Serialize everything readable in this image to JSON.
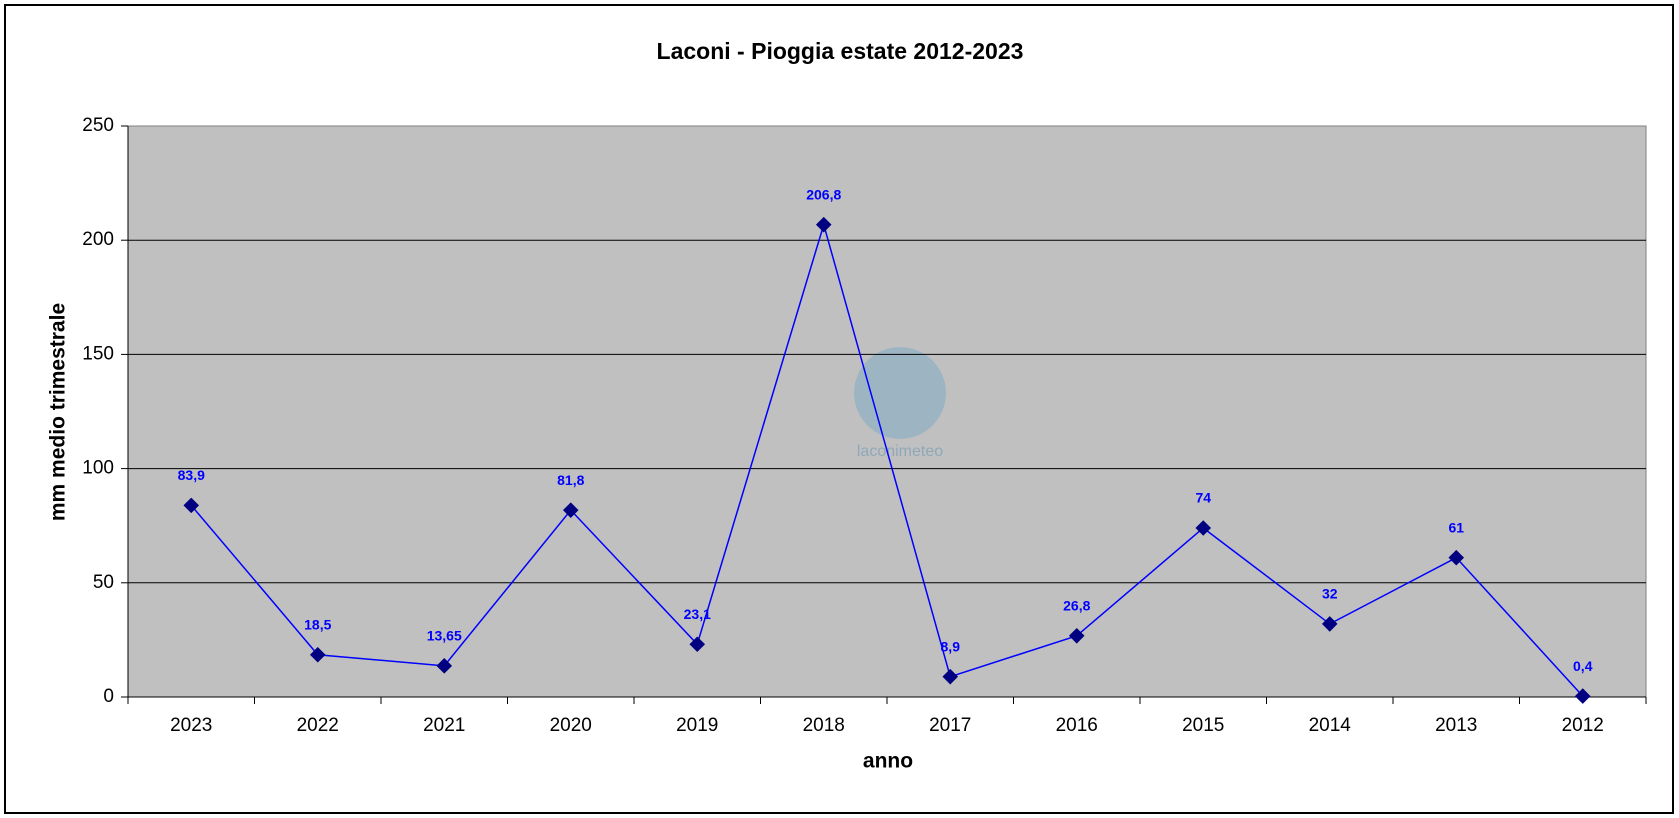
{
  "chart_data": {
    "type": "line",
    "title": "Laconi - Pioggia estate 2012-2023",
    "x_label": "anno",
    "y_label": "mm medio trimestrale",
    "watermark": "laconimeteo",
    "categories": [
      "2023",
      "2022",
      "2021",
      "2020",
      "2019",
      "2018",
      "2017",
      "2016",
      "2015",
      "2014",
      "2013",
      "2012"
    ],
    "series": [
      {
        "name": "Laconi",
        "color": "#0000ff",
        "marker_color": "#000080",
        "values": [
          83.9,
          18.5,
          13.65,
          81.8,
          23.1,
          206.8,
          8.9,
          26.8,
          74,
          32,
          61,
          0.4
        ],
        "value_labels": [
          "83,9",
          "18,5",
          "13,65",
          "81,8",
          "23,1",
          "206,8",
          "8,9",
          "26,8",
          "74",
          "32",
          "61",
          "0,4"
        ]
      }
    ],
    "ylim": [
      0,
      250
    ],
    "yticks": [
      0,
      50,
      100,
      150,
      200,
      250
    ],
    "grid": true,
    "plot_background": "#c0c0c0"
  }
}
